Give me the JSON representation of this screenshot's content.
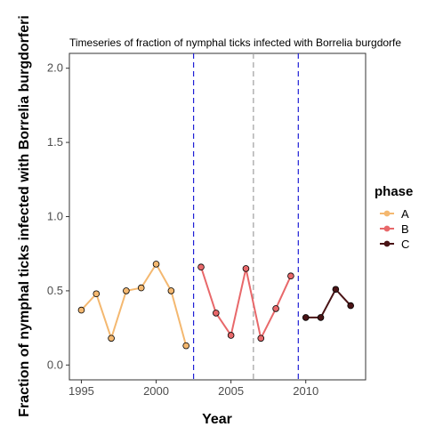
{
  "chart_data": {
    "type": "line",
    "title": "Timeseries of fraction of nymphal ticks infected with Borrelia burgdorfe",
    "xlabel": "Year",
    "ylabel": "Fraction of nymphal ticks infected with Borrelia burgdorferi",
    "xlim": [
      1994.2,
      2014.0
    ],
    "ylim": [
      -0.1,
      2.1
    ],
    "xticks": [
      1995,
      2000,
      2005,
      2010
    ],
    "yticks": [
      0.0,
      0.5,
      1.0,
      1.5,
      2.0
    ],
    "ytick_labels": [
      "0.0",
      "0.5",
      "1.0",
      "1.5",
      "2.0"
    ],
    "grid": false,
    "legend": {
      "title": "phase",
      "position": "right"
    },
    "series": [
      {
        "name": "A",
        "color": "#F4B870",
        "x": [
          1995,
          1996,
          1997,
          1998,
          1999,
          2000,
          2001,
          2002
        ],
        "y": [
          0.37,
          0.48,
          0.18,
          0.5,
          0.52,
          0.68,
          0.5,
          0.13
        ]
      },
      {
        "name": "B",
        "color": "#E8686A",
        "x": [
          2003,
          2004,
          2005,
          2006,
          2007,
          2008,
          2009
        ],
        "y": [
          0.66,
          0.35,
          0.2,
          0.65,
          0.18,
          0.38,
          0.6
        ]
      },
      {
        "name": "C",
        "color": "#4A1416",
        "x": [
          2010,
          2011,
          2012,
          2013
        ],
        "y": [
          0.32,
          0.32,
          0.51,
          0.4
        ]
      }
    ],
    "vlines": [
      {
        "x": 2002.5,
        "color": "#1F1FD6",
        "style": "dashed"
      },
      {
        "x": 2006.5,
        "color": "#A0A0A0",
        "style": "dashed"
      },
      {
        "x": 2009.5,
        "color": "#1F1FD6",
        "style": "dashed"
      }
    ]
  }
}
